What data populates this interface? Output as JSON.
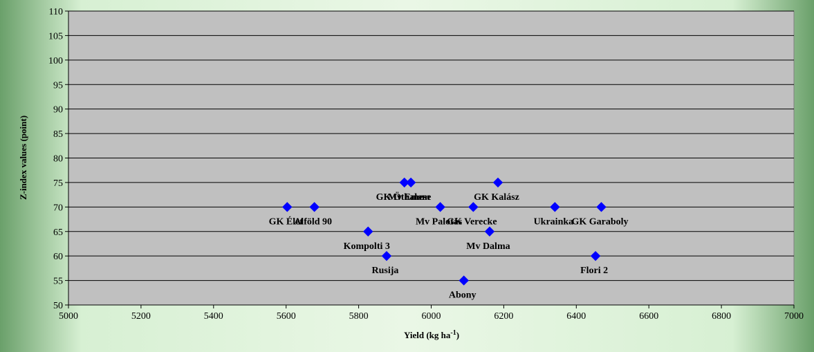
{
  "chart_data": {
    "type": "scatter",
    "xlabel": "Yield (kg ha",
    "xlabel_superscript": "-1",
    "xlabel_suffix": ")",
    "ylabel": "Z-index values (point)",
    "xlim": [
      5000,
      7000
    ],
    "ylim": [
      50,
      110
    ],
    "xticks": [
      5000,
      5200,
      5400,
      5600,
      5800,
      6000,
      6200,
      6400,
      6600,
      6800,
      7000
    ],
    "yticks": [
      50,
      55,
      60,
      65,
      70,
      75,
      80,
      85,
      90,
      95,
      100,
      105,
      110
    ],
    "grid": true,
    "marker_color": "#0000ff",
    "plot_background": "#c0c0c0",
    "points": [
      {
        "label": "GK Élet",
        "x": 5603,
        "y": 70
      },
      {
        "label": "Alföld 90",
        "x": 5678,
        "y": 70
      },
      {
        "label": "Kompolti 3",
        "x": 5826,
        "y": 65
      },
      {
        "label": "Rusija",
        "x": 5877,
        "y": 60
      },
      {
        "label": "GK Öthalom",
        "x": 5926,
        "y": 75
      },
      {
        "label": "Mv Emese",
        "x": 5944,
        "y": 75
      },
      {
        "label": "Mv Palotás",
        "x": 6025,
        "y": 70
      },
      {
        "label": "Abony",
        "x": 6090,
        "y": 55
      },
      {
        "label": "GK Verecke",
        "x": 6116,
        "y": 70
      },
      {
        "label": "Mv Dalma",
        "x": 6161,
        "y": 65
      },
      {
        "label": "GK Kalász",
        "x": 6184,
        "y": 75
      },
      {
        "label": "Ukrainka",
        "x": 6341,
        "y": 70
      },
      {
        "label": "Flori 2",
        "x": 6453,
        "y": 60
      },
      {
        "label": "GK Garaboly",
        "x": 6469,
        "y": 70
      }
    ]
  }
}
